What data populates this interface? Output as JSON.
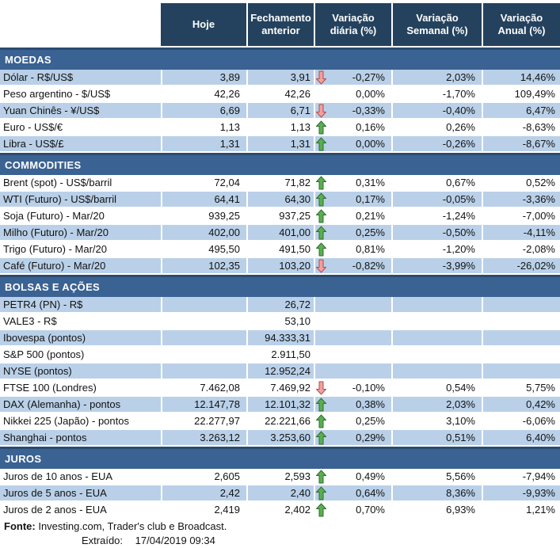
{
  "header": {
    "columns": [
      "Hoje",
      "Fechamento anterior",
      "Variação diária (%)",
      "Variação Semanal (%)",
      "Variação Anual (%)"
    ]
  },
  "sections": [
    {
      "title": "MOEDAS",
      "rows": [
        {
          "label": "Dólar - R$/US$",
          "hoje": "3,89",
          "fechamento": "3,91",
          "arrow": "down",
          "var_diaria": "-0,27%",
          "var_semanal": "2,03%",
          "var_anual": "14,46%",
          "shaded": true
        },
        {
          "label": "Peso argentino - $/US$",
          "hoje": "42,26",
          "fechamento": "42,26",
          "arrow": "",
          "var_diaria": "0,00%",
          "var_semanal": "-1,70%",
          "var_anual": "109,49%",
          "shaded": false
        },
        {
          "label": "Yuan Chinês - ¥/US$",
          "hoje": "6,69",
          "fechamento": "6,71",
          "arrow": "down",
          "var_diaria": "-0,33%",
          "var_semanal": "-0,40%",
          "var_anual": "6,47%",
          "shaded": true
        },
        {
          "label": "Euro - US$/€",
          "hoje": "1,13",
          "fechamento": "1,13",
          "arrow": "up",
          "var_diaria": "0,16%",
          "var_semanal": "0,26%",
          "var_anual": "-8,63%",
          "shaded": false
        },
        {
          "label": "Libra - US$/£",
          "hoje": "1,31",
          "fechamento": "1,31",
          "arrow": "up",
          "var_diaria": "0,00%",
          "var_semanal": "-0,26%",
          "var_anual": "-8,67%",
          "shaded": true
        }
      ]
    },
    {
      "title": "COMMODITIES",
      "rows": [
        {
          "label": "Brent (spot) - US$/barril",
          "hoje": "72,04",
          "fechamento": "71,82",
          "arrow": "up",
          "var_diaria": "0,31%",
          "var_semanal": "0,67%",
          "var_anual": "0,52%",
          "shaded": false
        },
        {
          "label": "WTI (Futuro) - US$/barril",
          "hoje": "64,41",
          "fechamento": "64,30",
          "arrow": "up",
          "var_diaria": "0,17%",
          "var_semanal": "-0,05%",
          "var_anual": "-3,36%",
          "shaded": true
        },
        {
          "label": "Soja (Futuro) - Mar/20",
          "hoje": "939,25",
          "fechamento": "937,25",
          "arrow": "up",
          "var_diaria": "0,21%",
          "var_semanal": "-1,24%",
          "var_anual": "-7,00%",
          "shaded": false
        },
        {
          "label": "Milho (Futuro) - Mar/20",
          "hoje": "402,00",
          "fechamento": "401,00",
          "arrow": "up",
          "var_diaria": "0,25%",
          "var_semanal": "-0,50%",
          "var_anual": "-4,11%",
          "shaded": true
        },
        {
          "label": "Trigo (Futuro) - Mar/20",
          "hoje": "495,50",
          "fechamento": "491,50",
          "arrow": "up",
          "var_diaria": "0,81%",
          "var_semanal": "-1,20%",
          "var_anual": "-2,08%",
          "shaded": false
        },
        {
          "label": "Café (Futuro) - Mar/20",
          "hoje": "102,35",
          "fechamento": "103,20",
          "arrow": "down",
          "var_diaria": "-0,82%",
          "var_semanal": "-3,99%",
          "var_anual": "-26,02%",
          "shaded": true
        }
      ]
    },
    {
      "title": "BOLSAS E AÇÕES",
      "rows": [
        {
          "label": "PETR4 (PN) - R$",
          "hoje": "",
          "fechamento": "26,72",
          "arrow": "",
          "var_diaria": "",
          "var_semanal": "",
          "var_anual": "",
          "shaded": true
        },
        {
          "label": "VALE3 - R$",
          "hoje": "",
          "fechamento": "53,10",
          "arrow": "",
          "var_diaria": "",
          "var_semanal": "",
          "var_anual": "",
          "shaded": false
        },
        {
          "label": "Ibovespa (pontos)",
          "hoje": "",
          "fechamento": "94.333,31",
          "arrow": "",
          "var_diaria": "",
          "var_semanal": "",
          "var_anual": "",
          "shaded": true
        },
        {
          "label": "S&P 500 (pontos)",
          "hoje": "",
          "fechamento": "2.911,50",
          "arrow": "",
          "var_diaria": "",
          "var_semanal": "",
          "var_anual": "",
          "shaded": false
        },
        {
          "label": "NYSE (pontos)",
          "hoje": "",
          "fechamento": "12.952,24",
          "arrow": "",
          "var_diaria": "",
          "var_semanal": "",
          "var_anual": "",
          "shaded": true
        },
        {
          "label": "FTSE 100 (Londres)",
          "hoje": "7.462,08",
          "fechamento": "7.469,92",
          "arrow": "down",
          "var_diaria": "-0,10%",
          "var_semanal": "0,54%",
          "var_anual": "5,75%",
          "shaded": false
        },
        {
          "label": "DAX (Alemanha) - pontos",
          "hoje": "12.147,78",
          "fechamento": "12.101,32",
          "arrow": "up",
          "var_diaria": "0,38%",
          "var_semanal": "2,03%",
          "var_anual": "0,42%",
          "shaded": true
        },
        {
          "label": "Nikkei 225 (Japão) - pontos",
          "hoje": "22.277,97",
          "fechamento": "22.221,66",
          "arrow": "up",
          "var_diaria": "0,25%",
          "var_semanal": "3,10%",
          "var_anual": "-6,06%",
          "shaded": false
        },
        {
          "label": "Shanghai - pontos",
          "hoje": "3.263,12",
          "fechamento": "3.253,60",
          "arrow": "up",
          "var_diaria": "0,29%",
          "var_semanal": "0,51%",
          "var_anual": "6,40%",
          "shaded": true
        }
      ]
    },
    {
      "title": "JUROS",
      "rows": [
        {
          "label": "Juros de 10 anos - EUA",
          "hoje": "2,605",
          "fechamento": "2,593",
          "arrow": "up",
          "var_diaria": "0,49%",
          "var_semanal": "5,56%",
          "var_anual": "-7,94%",
          "shaded": false
        },
        {
          "label": "Juros de 5 anos - EUA",
          "hoje": "2,42",
          "fechamento": "2,40",
          "arrow": "up",
          "var_diaria": "0,64%",
          "var_semanal": "8,36%",
          "var_anual": "-9,93%",
          "shaded": true
        },
        {
          "label": "Juros de 2 anos - EUA",
          "hoje": "2,419",
          "fechamento": "2,402",
          "arrow": "up",
          "var_diaria": "0,70%",
          "var_semanal": "6,93%",
          "var_anual": "1,21%",
          "shaded": false
        }
      ]
    }
  ],
  "footer": {
    "fonte_label": "Fonte:",
    "fonte_text": "Investing.com, Trader's club e Broadcast.",
    "extraido_label": "Extraído:",
    "extraido_value": "17/04/2019 09:34"
  },
  "icons": {
    "up": "up-arrow-icon",
    "down": "down-arrow-icon"
  },
  "colors": {
    "header_bg": "#24425E",
    "section_bg": "#3A6292",
    "section_border": "#2B4B6F",
    "row_shaded": "#B9D0E8",
    "arrow_up_fill": "#5BAE51",
    "arrow_up_stroke": "#2F6D2F",
    "arrow_down_fill": "#F2A0A0",
    "arrow_down_stroke": "#B14C4C"
  }
}
